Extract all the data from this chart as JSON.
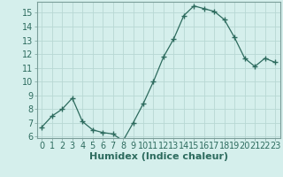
{
  "x": [
    0,
    1,
    2,
    3,
    4,
    5,
    6,
    7,
    8,
    9,
    10,
    11,
    12,
    13,
    14,
    15,
    16,
    17,
    18,
    19,
    20,
    21,
    22,
    23
  ],
  "y": [
    6.7,
    7.5,
    8.0,
    8.8,
    7.1,
    6.5,
    6.3,
    6.2,
    5.7,
    7.0,
    8.4,
    10.0,
    11.8,
    13.1,
    14.8,
    15.5,
    15.3,
    15.1,
    14.5,
    13.2,
    11.7,
    11.1,
    11.7,
    11.4
  ],
  "xlabel": "Humidex (Indice chaleur)",
  "ylim_min": 5.9,
  "ylim_max": 15.8,
  "xlim_min": -0.5,
  "xlim_max": 23.5,
  "yticks": [
    6,
    7,
    8,
    9,
    10,
    11,
    12,
    13,
    14,
    15
  ],
  "xticks": [
    0,
    1,
    2,
    3,
    4,
    5,
    6,
    7,
    8,
    9,
    10,
    11,
    12,
    13,
    14,
    15,
    16,
    17,
    18,
    19,
    20,
    21,
    22,
    23
  ],
  "line_color": "#2d6b5e",
  "marker": "+",
  "marker_size": 5,
  "bg_color": "#d5efec",
  "grid_color": "#b8d8d4",
  "spine_color": "#7a9e99",
  "xlabel_fontsize": 8,
  "tick_fontsize": 7,
  "label_color": "#2d6b5e"
}
